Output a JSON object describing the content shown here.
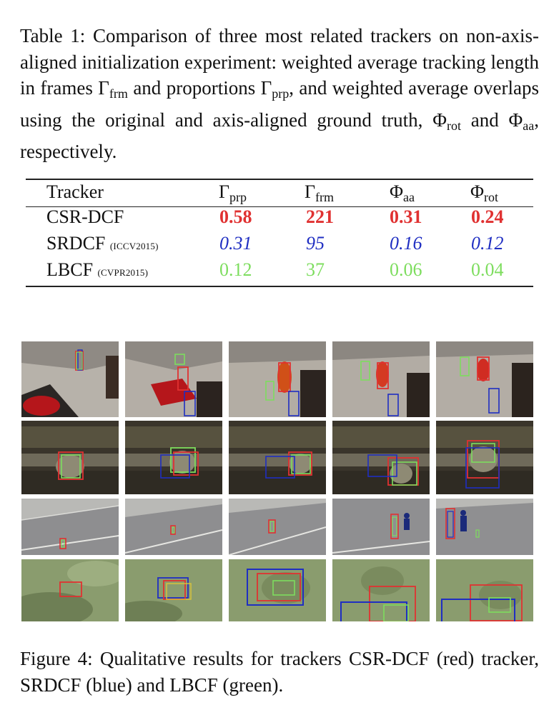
{
  "table_caption": {
    "label": "Table 1:",
    "text_before_gfrm": " Comparison of three most related trackers on non-axis-aligned initialization experiment: weighted average tracking length in frames ",
    "text_between_gfrm_gprp": " and proportions ",
    "text_between_gprp_phirot": ", and weighted average overlaps using the original and axis-aligned ground truth, ",
    "text_between_phirot_phiaa": " and ",
    "text_end": ", respectively."
  },
  "symbols": {
    "gamma": "Γ",
    "phi": "Φ",
    "sub_prp": "prp",
    "sub_frm": "frm",
    "sub_aa": "aa",
    "sub_rot": "rot"
  },
  "table": {
    "header_tracker": "Tracker",
    "rows": [
      {
        "name": "CSR-DCF",
        "tag": "",
        "prp": "0.58",
        "frm": "221",
        "aa": "0.31",
        "rot": "0.24"
      },
      {
        "name": "SRDCF",
        "tag": "(ICCV2015)",
        "prp": "0.31",
        "frm": "95",
        "aa": "0.16",
        "rot": "0.12"
      },
      {
        "name": "LBCF",
        "tag": "(CVPR2015)",
        "prp": "0.12",
        "frm": "37",
        "aa": "0.06",
        "rot": "0.04"
      }
    ]
  },
  "colors": {
    "csr_dcf": "#e03131",
    "srdcf": "#1f2ec2",
    "lbcf": "#7ddd5e"
  },
  "figure_caption": {
    "text": "Figure 4:  Qualitative results for trackers CSR-DCF (red) tracker, SRDCF (blue) and LBCF (green)."
  },
  "figure_rows": [
    {
      "scene": "indoor-room",
      "frames": 5
    },
    {
      "scene": "xtvision-screen",
      "frames": 5
    },
    {
      "scene": "road-pedestrian",
      "frames": 5
    },
    {
      "scene": "grass-field",
      "frames": 5
    }
  ]
}
